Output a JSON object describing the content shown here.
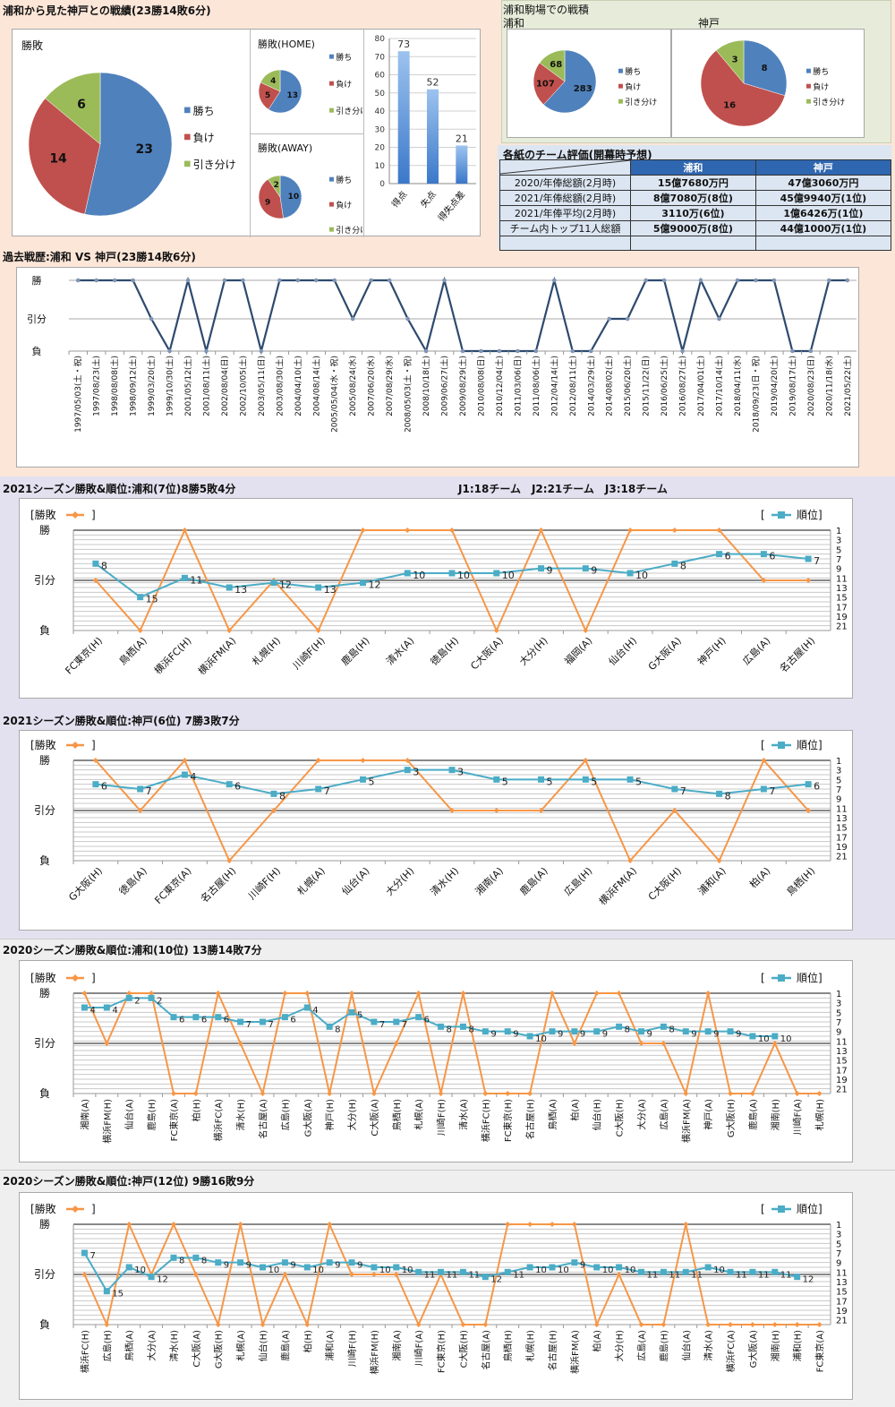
{
  "colors": {
    "win": "#4f81bd",
    "loss": "#c0504d",
    "draw": "#9bbb59",
    "result_line": "#f79646",
    "rank_line": "#4bacc6",
    "history_line": "#2e4a6e",
    "table_header": "#2f66b0"
  },
  "header": {
    "title": "浦和から見た神戸との戦績(23勝14敗6分)",
    "stadium_title": "浦和駒場での戦積",
    "stadium_urawa_label": "浦和",
    "stadium_kobe_label": "神戸",
    "league_info": "J1:18チーム　J2:21チーム　J3:18チーム"
  },
  "legend": {
    "win": "勝ち",
    "loss": "負け",
    "draw": "引き分け"
  },
  "evaluation_table": {
    "title": "各紙のチーム評価(開幕時予想)",
    "columns": [
      "浦和",
      "神戸"
    ],
    "rows": [
      {
        "label": "2020/年俸総額(2月時)",
        "urawa": "15億7680万円",
        "kobe": "47億3060万円"
      },
      {
        "label": "2021/年俸総額(2月時)",
        "urawa": "8億7080万(8位)",
        "kobe": "45億9940万(1位)"
      },
      {
        "label": "2021/年俸平均(2月時)",
        "urawa": "3110万(6位)",
        "kobe": "1億6426万(1位)"
      },
      {
        "label": "チーム内トップ11人総額",
        "urawa": "5億9000万(8位)",
        "kobe": "44億1000万(1位)"
      }
    ]
  },
  "chart_data": [
    {
      "id": "overall-pie",
      "type": "pie",
      "title": "勝敗",
      "categories": [
        "勝ち",
        "負け",
        "引き分け"
      ],
      "values": [
        23,
        14,
        6
      ]
    },
    {
      "id": "home-pie",
      "type": "pie",
      "title": "勝敗(HOME)",
      "categories": [
        "勝ち",
        "負け",
        "引き分け"
      ],
      "values": [
        13,
        5,
        4
      ]
    },
    {
      "id": "away-pie",
      "type": "pie",
      "title": "勝敗(AWAY)",
      "categories": [
        "勝ち",
        "負け",
        "引き分け"
      ],
      "values": [
        10,
        9,
        2
      ]
    },
    {
      "id": "goals-bar",
      "type": "bar",
      "title": "",
      "categories": [
        "得点",
        "失点",
        "得失点差"
      ],
      "values": [
        73,
        52,
        21
      ],
      "ylim": [
        0,
        80
      ],
      "yticks": [
        0,
        10,
        20,
        30,
        40,
        50,
        60,
        70,
        80
      ]
    },
    {
      "id": "komaba-urawa-pie",
      "type": "pie",
      "title": "浦和",
      "categories": [
        "勝ち",
        "負け",
        "引き分け"
      ],
      "values": [
        283,
        107,
        68
      ]
    },
    {
      "id": "komaba-kobe-pie",
      "type": "pie",
      "title": "神戸",
      "categories": [
        "勝ち",
        "負け",
        "引き分け"
      ],
      "values": [
        8,
        16,
        3
      ]
    },
    {
      "id": "history",
      "type": "line",
      "title": "過去戦歴:浦和 VS 神戸(23勝14敗6分)",
      "ylabels": [
        "勝",
        "引分",
        "負"
      ],
      "x": [
        "1997/05/03(土・祝)",
        "1997/08/23(土)",
        "1998/08/08(土)",
        "1998/09/12(土)",
        "1999/03/20(土)",
        "1999/10/30(土)",
        "2001/05/12(土)",
        "2001/08/11(土)",
        "2002/08/04(日)",
        "2002/10/05(土)",
        "2003/05/11(日)",
        "2003/08/30(土)",
        "2004/04/10(土)",
        "2004/08/14(土)",
        "2005/05/04(水・祝)",
        "2005/08/24(水)",
        "2007/06/20(水)",
        "2007/08/29(水)",
        "2008/05/03(土・祝)",
        "2008/10/18(土)",
        "2009/06/27(土)",
        "2009/08/29(土)",
        "2010/08/08(日)",
        "2010/12/04(土)",
        "2011/03/06(日)",
        "2011/08/06(土)",
        "2012/04/14(土)",
        "2012/08/11(土)",
        "2014/03/29(土)",
        "2014/08/02(土)",
        "2015/06/20(土)",
        "2015/11/22(日)",
        "2016/06/25(土)",
        "2016/08/27(土)",
        "2017/04/01(土)",
        "2017/10/14(土)",
        "2018/04/11(水)",
        "2018/09/23(日・祝)",
        "2019/04/20(土)",
        "2019/08/17(土)",
        "2020/08/23(日)",
        "2020/11/18(水)",
        "2021/05/22(土)"
      ],
      "results": [
        "W",
        "W",
        "W",
        "W",
        "D",
        "L",
        "W",
        "L",
        "W",
        "W",
        "L",
        "W",
        "W",
        "W",
        "W",
        "D",
        "W",
        "W",
        "D",
        "L",
        "W",
        "L",
        "L",
        "L",
        "L",
        "L",
        "W",
        "L",
        "L",
        "D",
        "D",
        "W",
        "W",
        "L",
        "W",
        "D",
        "W",
        "W",
        "W",
        "L",
        "L",
        "W",
        "W"
      ]
    },
    {
      "id": "urawa-2021",
      "type": "line",
      "title": "2021シーズン勝敗&順位:浦和(7位)8勝5敗4分",
      "legend_left": "勝敗",
      "legend_right": "順位",
      "ylabels": [
        "勝",
        "引分",
        "負"
      ],
      "rank_ticks": [
        1,
        3,
        5,
        7,
        9,
        11,
        13,
        15,
        17,
        19,
        21
      ],
      "rank_range": [
        1,
        22
      ],
      "x": [
        "FC東京(H)",
        "鳥栖(A)",
        "横浜FC(H)",
        "横浜FM(A)",
        "札幌(H)",
        "川崎F(H)",
        "鹿島(H)",
        "清水(A)",
        "徳島(H)",
        "C大阪(A)",
        "大分(H)",
        "福岡(A)",
        "仙台(H)",
        "G大阪(A)",
        "神戸(H)",
        "広島(A)",
        "名古屋(H)"
      ],
      "results": [
        "D",
        "L",
        "W",
        "L",
        "D",
        "L",
        "W",
        "W",
        "W",
        "L",
        "W",
        "L",
        "W",
        "W",
        "W",
        "D",
        "D"
      ],
      "ranks": [
        8,
        15,
        11,
        13,
        12,
        13,
        12,
        10,
        10,
        10,
        9,
        9,
        10,
        8,
        6,
        6,
        7
      ]
    },
    {
      "id": "kobe-2021",
      "type": "line",
      "title": "2021シーズン勝敗&順位:神戸(6位) 7勝3敗7分",
      "legend_left": "勝敗",
      "legend_right": "順位",
      "ylabels": [
        "勝",
        "引分",
        "負"
      ],
      "rank_ticks": [
        1,
        3,
        5,
        7,
        9,
        11,
        13,
        15,
        17,
        19,
        21
      ],
      "rank_range": [
        1,
        22
      ],
      "x": [
        "G大阪(H)",
        "徳島(A)",
        "FC東京(A)",
        "名古屋(H)",
        "川崎F(H)",
        "札幌(A)",
        "仙台(A)",
        "大分(H)",
        "清水(H)",
        "湘南(A)",
        "鹿島(A)",
        "広島(H)",
        "横浜FM(A)",
        "C大阪(H)",
        "浦和(A)",
        "柏(A)",
        "鳥栖(H)"
      ],
      "results": [
        "W",
        "D",
        "W",
        "L",
        "D",
        "W",
        "W",
        "W",
        "D",
        "D",
        "D",
        "W",
        "L",
        "D",
        "L",
        "W",
        "D"
      ],
      "ranks": [
        6,
        7,
        4,
        6,
        8,
        7,
        5,
        3,
        3,
        5,
        5,
        5,
        5,
        7,
        8,
        7,
        6
      ]
    },
    {
      "id": "urawa-2020",
      "type": "line",
      "title": "2020シーズン勝敗&順位:浦和(10位) 13勝14敗7分",
      "legend_left": "勝敗",
      "legend_right": "順位",
      "ylabels": [
        "勝",
        "引分",
        "負"
      ],
      "rank_ticks": [
        1,
        3,
        5,
        7,
        9,
        11,
        13,
        15,
        17,
        19,
        21
      ],
      "rank_range": [
        1,
        22
      ],
      "x": [
        "湘南(A)",
        "横浜FM(H)",
        "仙台(A)",
        "鹿島(H)",
        "FC東京(A)",
        "柏(H)",
        "横浜FC(A)",
        "清水(H)",
        "名古屋(A)",
        "広島(H)",
        "G大阪(A)",
        "神戸(H)",
        "大分(H)",
        "C大阪(A)",
        "鳥栖(H)",
        "札幌(A)",
        "川崎F(H)",
        "清水(A)",
        "横浜FC(H)",
        "FC東京(H)",
        "名古屋(H)",
        "鳥栖(A)",
        "柏(A)",
        "仙台(H)",
        "C大阪(H)",
        "大分(A)",
        "広島(A)",
        "横浜FM(A)",
        "神戸(A)",
        "G大阪(H)",
        "鹿島(A)",
        "湘南(H)",
        "川崎F(A)",
        "札幌(H)"
      ],
      "results": [
        "W",
        "D",
        "W",
        "W",
        "L",
        "L",
        "W",
        "D",
        "L",
        "W",
        "W",
        "L",
        "W",
        "L",
        "D",
        "W",
        "L",
        "W",
        "L",
        "L",
        "L",
        "W",
        "D",
        "W",
        "W",
        "D",
        "D",
        "L",
        "W",
        "L",
        "L",
        "D",
        "L",
        "L"
      ],
      "ranks": [
        4,
        4,
        2,
        2,
        6,
        6,
        6,
        7,
        7,
        6,
        4,
        8,
        5,
        7,
        7,
        6,
        8,
        8,
        9,
        9,
        10,
        9,
        9,
        9,
        8,
        9,
        8,
        9,
        9,
        9,
        10,
        10,
        null,
        null
      ]
    },
    {
      "id": "kobe-2020",
      "type": "line",
      "title": "2020シーズン勝敗&順位:神戸(12位) 9勝16敗9分",
      "legend_left": "勝敗",
      "legend_right": "順位",
      "ylabels": [
        "勝",
        "引分",
        "負"
      ],
      "rank_ticks": [
        1,
        3,
        5,
        7,
        9,
        11,
        13,
        15,
        17,
        19,
        21
      ],
      "rank_range": [
        1,
        22
      ],
      "x": [
        "横浜FC(H)",
        "広島(H)",
        "鳥栖(A)",
        "大分(A)",
        "清水(H)",
        "C大阪(A)",
        "G大阪(H)",
        "札幌(A)",
        "仙台(H)",
        "鹿島(A)",
        "柏(H)",
        "浦和(A)",
        "川崎F(H)",
        "横浜FM(H)",
        "湘南(A)",
        "川崎F(A)",
        "FC東京(H)",
        "C大阪(H)",
        "名古屋(A)",
        "鳥栖(H)",
        "札幌(H)",
        "名古屋(H)",
        "横浜FM(A)",
        "柏(A)",
        "大分(H)",
        "広島(A)",
        "鹿島(H)",
        "仙台(A)",
        "清水(A)",
        "横浜FC(A)",
        "G大阪(A)",
        "湘南(H)",
        "浦和(H)",
        "FC東京(A)"
      ],
      "results": [
        "D",
        "L",
        "W",
        "D",
        "W",
        "D",
        "L",
        "W",
        "L",
        "D",
        "L",
        "W",
        "D",
        "D",
        "D",
        "L",
        "D",
        "L",
        "L",
        "W",
        "W",
        "W",
        "W",
        "L",
        "D",
        "L",
        "L",
        "W",
        "L",
        "L",
        "L",
        "L",
        "L",
        "L"
      ],
      "ranks": [
        7,
        15,
        10,
        12,
        8,
        8,
        9,
        9,
        10,
        9,
        10,
        9,
        9,
        10,
        10,
        11,
        11,
        11,
        12,
        11,
        10,
        10,
        9,
        10,
        10,
        11,
        11,
        11,
        10,
        11,
        11,
        11,
        12,
        null
      ]
    }
  ]
}
